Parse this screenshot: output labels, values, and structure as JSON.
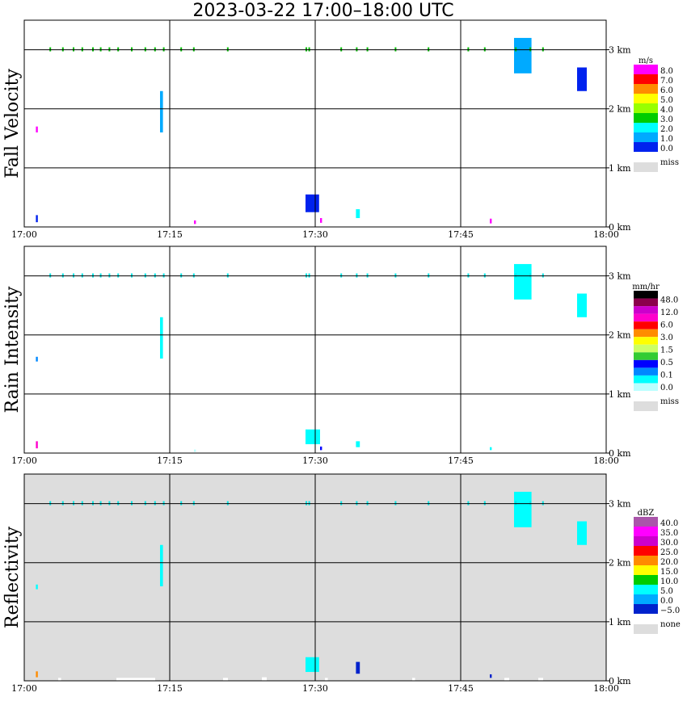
{
  "title": "2023-03-22  17:00–18:00 UTC",
  "chart_data": [
    {
      "type": "heatmap",
      "name": "fall-velocity",
      "ylabel": "Fall Velocity",
      "x_ticks": [
        "17:00",
        "17:15",
        "17:30",
        "17:45",
        "18:00"
      ],
      "y_ticks": [
        "0 km",
        "1 km",
        "2 km",
        "3 km"
      ],
      "x_range_min": [
        0,
        60
      ],
      "y_range_km": [
        0,
        3.5
      ],
      "background": "#ffffff",
      "legend": {
        "unit": "m/s",
        "labels": [
          "8.0",
          "7.0",
          "6.0",
          "5.0",
          "4.0",
          "3.0",
          "2.0",
          "1.0",
          "0.0"
        ],
        "colors": [
          "#ff00ff",
          "#ff0000",
          "#ff8c00",
          "#ffff00",
          "#99ff00",
          "#00cc00",
          "#00ffff",
          "#00aaff",
          "#0022ee"
        ],
        "missing_label": "miss",
        "missing_color": "#dddddd"
      },
      "echoes": [
        {
          "t": 29.0,
          "h": 0.25,
          "dt": 1.4,
          "dh": 0.3,
          "color": "#0022ee"
        },
        {
          "t": 34.2,
          "h": 0.15,
          "dt": 0.4,
          "dh": 0.15,
          "color": "#00ffff"
        },
        {
          "t": 14.0,
          "h": 1.6,
          "dt": 0.3,
          "dh": 0.7,
          "color": "#00aaff"
        },
        {
          "t": 50.5,
          "h": 2.6,
          "dt": 1.8,
          "dh": 0.6,
          "color": "#00aaff"
        },
        {
          "t": 57.0,
          "h": 2.3,
          "dt": 1.0,
          "dh": 0.4,
          "color": "#0022ee"
        },
        {
          "t": 1.2,
          "h": 1.6,
          "dt": 0.2,
          "dh": 0.1,
          "color": "#ff00ff"
        },
        {
          "t": 1.2,
          "h": 0.08,
          "dt": 0.2,
          "dh": 0.12,
          "color": "#0022ee"
        },
        {
          "t": 17.5,
          "h": 0.05,
          "dt": 0.2,
          "dh": 0.06,
          "color": "#ff00ff"
        },
        {
          "t": 30.5,
          "h": 0.07,
          "dt": 0.2,
          "dh": 0.08,
          "color": "#ff00ff"
        },
        {
          "t": 48.0,
          "h": 0.06,
          "dt": 0.2,
          "dh": 0.08,
          "color": "#ff00ff"
        }
      ],
      "surface_marks": [
        2.6,
        3.9,
        5.0,
        5.9,
        7.0,
        7.8,
        8.7,
        9.6,
        11.0,
        12.4,
        13.4,
        14.3,
        16.1,
        17.4,
        20.9,
        29.0,
        29.3,
        32.6,
        34.2,
        35.3,
        38.2,
        41.6,
        45.7,
        47.4,
        50.6,
        52.1,
        53.4
      ]
    },
    {
      "type": "heatmap",
      "name": "rain-intensity",
      "ylabel": "Rain Intensity",
      "x_ticks": [
        "17:00",
        "17:15",
        "17:30",
        "17:45",
        "18:00"
      ],
      "y_ticks": [
        "0 km",
        "1 km",
        "2 km",
        "3 km"
      ],
      "x_range_min": [
        0,
        60
      ],
      "y_range_km": [
        0,
        3.5
      ],
      "background": "#ffffff",
      "legend": {
        "unit": "mm/hr",
        "labels": [
          "48.0",
          "12.0",
          "6.0",
          "3.0",
          "1.5",
          "0.5",
          "0.1",
          "0.0"
        ],
        "colors": [
          "#000000",
          "#8b004b",
          "#cc00cc",
          "#ff00cc",
          "#ff0000",
          "#ff8c00",
          "#ffff00",
          "#ccff66",
          "#33cc33",
          "#0000ff",
          "#0088ff",
          "#00ffff",
          "#bbffff"
        ],
        "missing_label": "miss",
        "missing_color": "#dddddd"
      },
      "echoes": [
        {
          "t": 29.0,
          "h": 0.15,
          "dt": 1.5,
          "dh": 0.25,
          "color": "#00ffff"
        },
        {
          "t": 34.2,
          "h": 0.1,
          "dt": 0.4,
          "dh": 0.1,
          "color": "#00ffff"
        },
        {
          "t": 14.0,
          "h": 1.6,
          "dt": 0.3,
          "dh": 0.7,
          "color": "#00ffff"
        },
        {
          "t": 50.5,
          "h": 2.6,
          "dt": 1.8,
          "dh": 0.6,
          "color": "#00ffff"
        },
        {
          "t": 57.0,
          "h": 2.3,
          "dt": 1.0,
          "dh": 0.4,
          "color": "#00ffff"
        },
        {
          "t": 1.2,
          "h": 1.55,
          "dt": 0.2,
          "dh": 0.08,
          "color": "#0088ff"
        },
        {
          "t": 1.2,
          "h": 0.08,
          "dt": 0.2,
          "dh": 0.12,
          "color": "#ff00cc"
        },
        {
          "t": 17.5,
          "h": 0.02,
          "dt": 0.2,
          "dh": 0.04,
          "color": "#bbffff"
        },
        {
          "t": 30.5,
          "h": 0.05,
          "dt": 0.2,
          "dh": 0.06,
          "color": "#0000ff"
        },
        {
          "t": 48.0,
          "h": 0.05,
          "dt": 0.2,
          "dh": 0.05,
          "color": "#00ffff"
        }
      ],
      "surface_marks": [
        2.6,
        3.9,
        5.0,
        5.9,
        7.0,
        7.8,
        8.7,
        9.6,
        11.0,
        12.4,
        13.4,
        14.3,
        16.1,
        17.4,
        20.9,
        29.0,
        29.3,
        32.6,
        34.2,
        35.3,
        38.2,
        41.6,
        45.7,
        47.4,
        50.6,
        52.1,
        53.4
      ]
    },
    {
      "type": "heatmap",
      "name": "reflectivity",
      "ylabel": "Reflectivity",
      "x_ticks": [
        "17:00",
        "17:15",
        "17:30",
        "17:45",
        "18:00"
      ],
      "y_ticks": [
        "0 km",
        "1 km",
        "2 km",
        "3 km"
      ],
      "x_range_min": [
        0,
        60
      ],
      "y_range_km": [
        0,
        3.5
      ],
      "background": "#dddddd",
      "legend": {
        "unit": "dBZ",
        "labels": [
          "40.0",
          "35.0",
          "30.0",
          "25.0",
          "20.0",
          "15.0",
          "10.0",
          "5.0",
          "0.0",
          "−5.0"
        ],
        "colors": [
          "#aa55aa",
          "#ff00ff",
          "#cc00cc",
          "#ff0000",
          "#ff8c00",
          "#ffff00",
          "#00cc00",
          "#00ffff",
          "#00aaff",
          "#0022cc"
        ],
        "missing_label": "none",
        "missing_color": "#dddddd"
      },
      "echoes": [
        {
          "t": 29.0,
          "h": 0.15,
          "dt": 1.4,
          "dh": 0.25,
          "color": "#00ffff"
        },
        {
          "t": 34.2,
          "h": 0.12,
          "dt": 0.4,
          "dh": 0.2,
          "color": "#0022cc"
        },
        {
          "t": 14.0,
          "h": 1.6,
          "dt": 0.3,
          "dh": 0.7,
          "color": "#00ffff"
        },
        {
          "t": 50.5,
          "h": 2.6,
          "dt": 1.8,
          "dh": 0.6,
          "color": "#00ffff"
        },
        {
          "t": 57.0,
          "h": 2.3,
          "dt": 1.0,
          "dh": 0.4,
          "color": "#00ffff"
        },
        {
          "t": 1.2,
          "h": 1.55,
          "dt": 0.2,
          "dh": 0.08,
          "color": "#00ffff"
        },
        {
          "t": 1.2,
          "h": 0.06,
          "dt": 0.2,
          "dh": 0.1,
          "color": "#ff8c00"
        },
        {
          "t": 48.0,
          "h": 0.05,
          "dt": 0.2,
          "dh": 0.06,
          "color": "#0022cc"
        },
        {
          "t": 9.5,
          "h": 0.0,
          "dt": 4.0,
          "dh": 0.05,
          "color": "#ffffff"
        },
        {
          "t": 3.5,
          "h": 0.0,
          "dt": 0.3,
          "dh": 0.05,
          "color": "#ffffff"
        },
        {
          "t": 20.5,
          "h": 0.0,
          "dt": 0.5,
          "dh": 0.05,
          "color": "#ffffff"
        },
        {
          "t": 24.5,
          "h": 0.0,
          "dt": 0.5,
          "dh": 0.06,
          "color": "#ffffff"
        },
        {
          "t": 31.0,
          "h": 0.0,
          "dt": 0.3,
          "dh": 0.05,
          "color": "#ffffff"
        },
        {
          "t": 40.0,
          "h": 0.0,
          "dt": 0.3,
          "dh": 0.05,
          "color": "#ffffff"
        },
        {
          "t": 49.5,
          "h": 0.0,
          "dt": 0.5,
          "dh": 0.05,
          "color": "#ffffff"
        },
        {
          "t": 53.0,
          "h": 0.0,
          "dt": 0.5,
          "dh": 0.05,
          "color": "#ffffff"
        }
      ],
      "surface_marks": [
        2.6,
        3.9,
        5.0,
        5.9,
        7.0,
        7.8,
        8.7,
        9.6,
        11.0,
        12.4,
        13.4,
        14.3,
        16.1,
        17.4,
        20.9,
        29.0,
        29.3,
        32.6,
        34.2,
        35.3,
        38.2,
        41.6,
        45.7,
        47.4,
        50.6,
        52.1,
        53.4
      ]
    }
  ]
}
